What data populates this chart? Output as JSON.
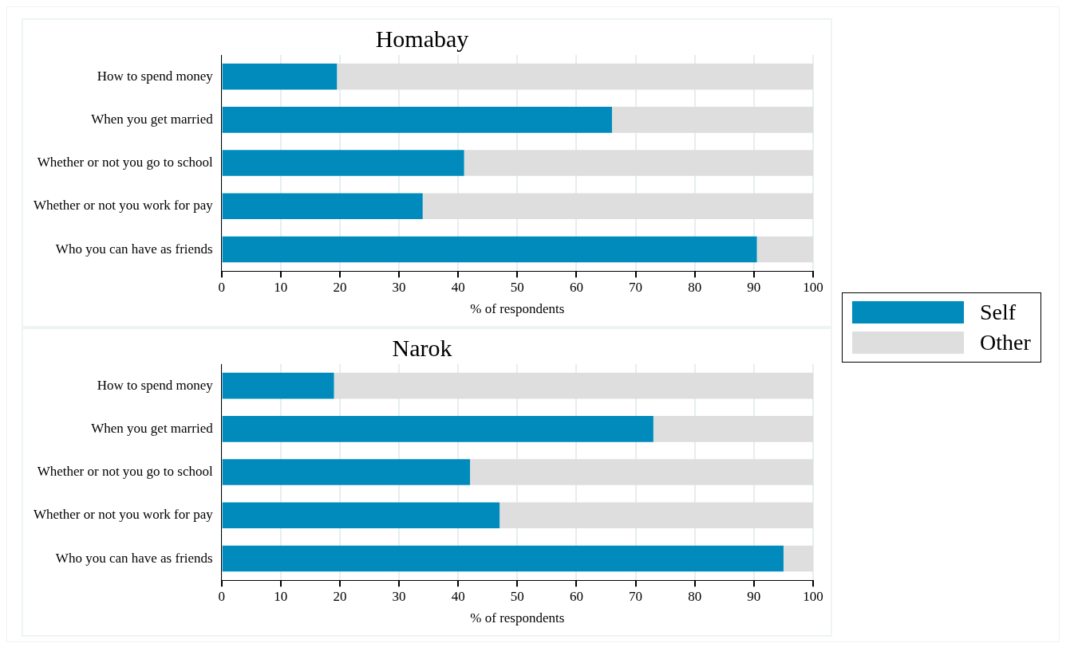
{
  "chart_data": [
    {
      "type": "bar",
      "title": "Homabay",
      "orientation": "horizontal",
      "stacked": true,
      "categories": [
        "How to spend money",
        "When you get married",
        "Whether or not you go to school",
        "Whether or not you work for pay",
        "Who you can have as friends"
      ],
      "series": [
        {
          "name": "Self",
          "color": "#008bbc",
          "values": [
            19.5,
            66,
            41,
            34,
            90.5
          ]
        },
        {
          "name": "Other",
          "color": "#dedede",
          "values": [
            80.5,
            34,
            59,
            66,
            9.5
          ]
        }
      ],
      "xlim": [
        0,
        100
      ],
      "xticks": [
        0,
        10,
        20,
        30,
        40,
        50,
        60,
        70,
        80,
        90,
        100
      ],
      "xlabel": "% of respondents",
      "grid": "x",
      "legend": "right"
    },
    {
      "type": "bar",
      "title": "Narok",
      "orientation": "horizontal",
      "stacked": true,
      "categories": [
        "How to spend money",
        "When you get married",
        "Whether or not you go to school",
        "Whether or not you work for pay",
        "Who you can have as friends"
      ],
      "series": [
        {
          "color": "#008bbc",
          "values": [
            19,
            73,
            42,
            47,
            95
          ]
        },
        {
          "color": "#dedede",
          "values": [
            81,
            27,
            58,
            53,
            5
          ]
        }
      ],
      "xlim": [
        0,
        100
      ],
      "xticks": [
        0,
        10,
        20,
        30,
        40,
        50,
        60,
        70,
        80,
        90,
        100
      ],
      "xlabel": "% of respondents",
      "grid": "x"
    }
  ]
}
